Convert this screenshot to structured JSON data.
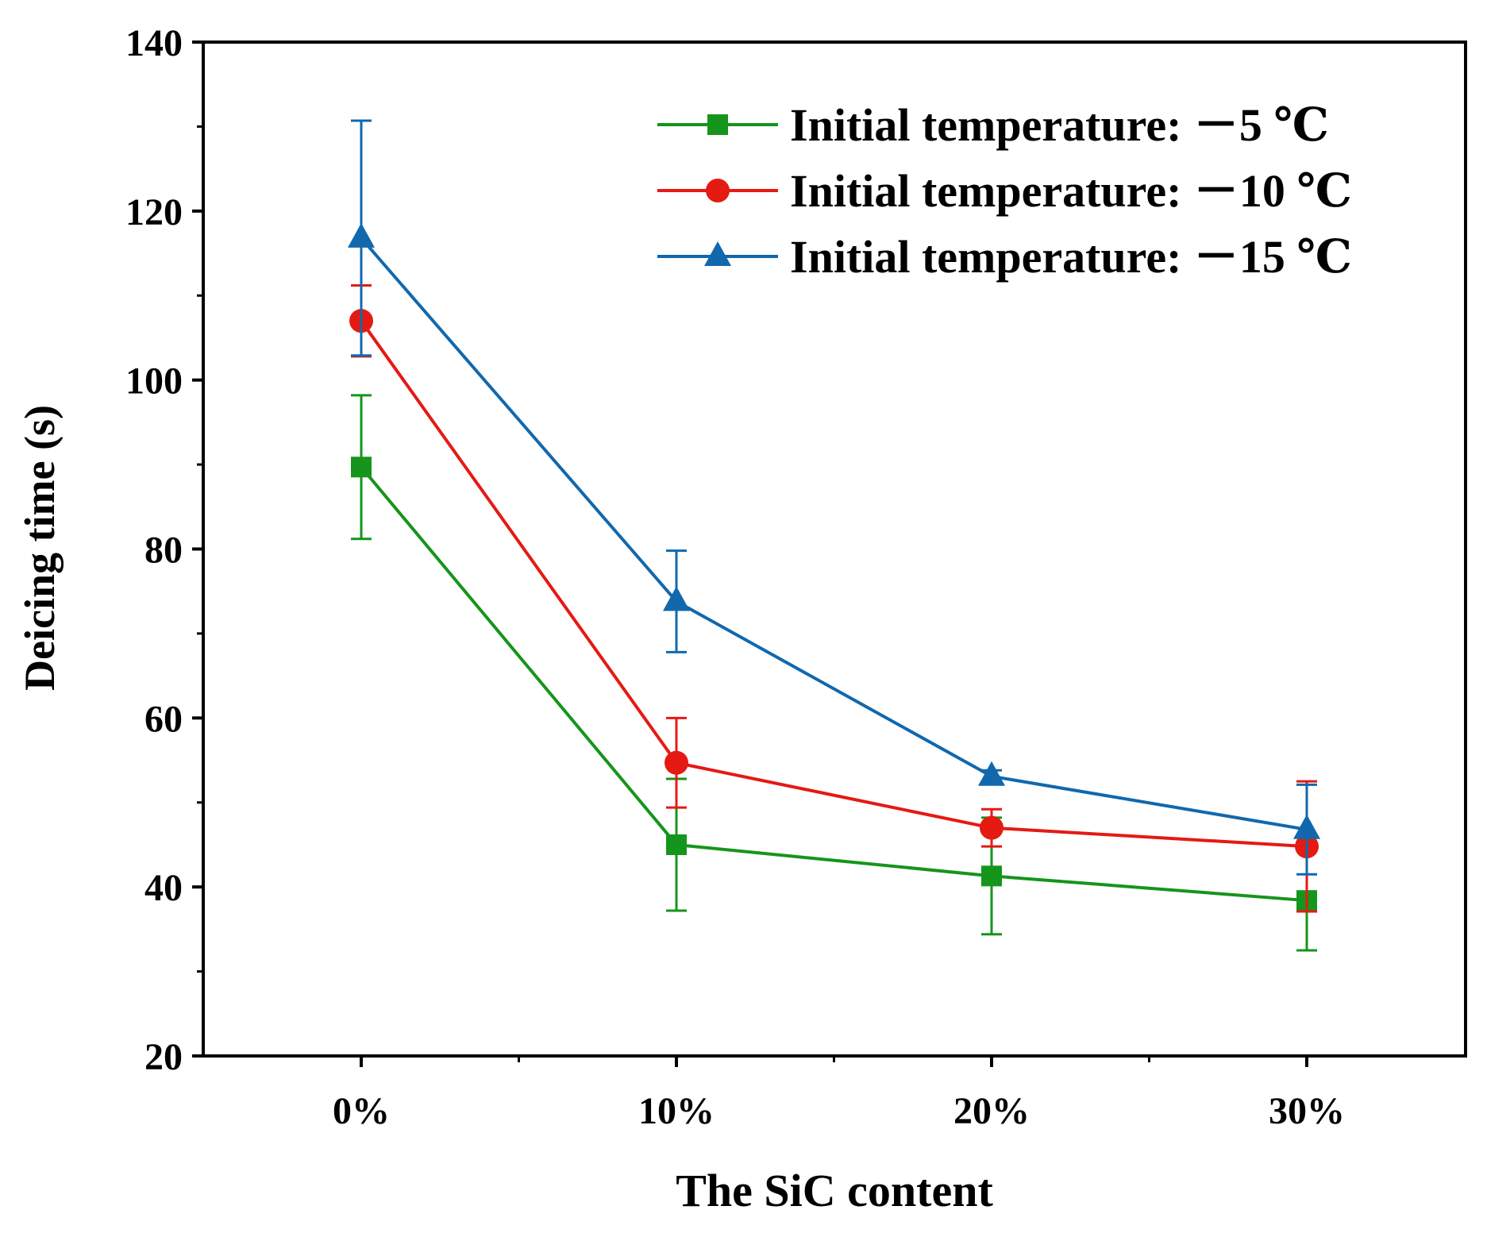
{
  "chart_data": {
    "type": "line",
    "categories": [
      "0%",
      "10%",
      "20%",
      "30%"
    ],
    "xlabel": "The SiC content",
    "ylabel": "Deicing time (s)",
    "ylim": [
      20,
      140
    ],
    "yticks": [
      "20",
      "40",
      "60",
      "80",
      "100",
      "120",
      "140"
    ],
    "grid": false,
    "legend_position": "top-right",
    "series": [
      {
        "name": "Initial temperature: －5 ℃",
        "marker": "square",
        "color": "#15951b",
        "values": [
          89.7,
          45.0,
          41.3,
          38.4
        ],
        "errors": [
          8.5,
          7.8,
          6.9,
          5.9
        ]
      },
      {
        "name": "Initial temperature: －10 ℃",
        "marker": "circle",
        "color": "#e41a13",
        "values": [
          107.0,
          54.7,
          47.0,
          44.8
        ],
        "errors": [
          4.2,
          5.3,
          2.2,
          7.7
        ]
      },
      {
        "name": "Initial temperature: －15 ℃",
        "marker": "triangle",
        "color": "#1168ad",
        "values": [
          116.8,
          73.8,
          53.1,
          46.8
        ],
        "errors": [
          13.9,
          6.0,
          0.7,
          5.3
        ]
      }
    ]
  }
}
